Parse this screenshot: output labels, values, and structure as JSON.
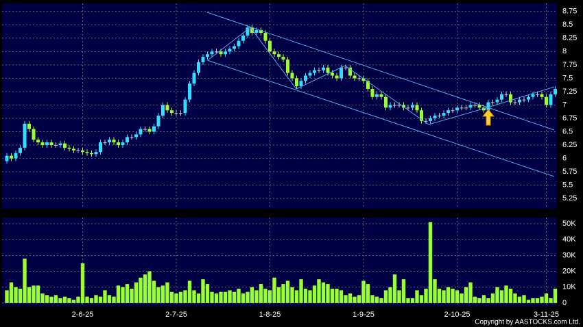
{
  "chart_data": [
    {
      "type": "candlestick",
      "x": [
        null,
        null,
        null,
        null,
        null,
        null,
        null,
        null,
        null,
        null,
        null,
        null,
        null,
        null,
        null,
        null,
        null,
        "2-6-25",
        null,
        null,
        null,
        null,
        null,
        null,
        null,
        null,
        null,
        null,
        null,
        null,
        null,
        null,
        null,
        null,
        null,
        null,
        null,
        null,
        "2-7-25",
        null,
        null,
        null,
        null,
        null,
        null,
        null,
        null,
        null,
        null,
        null,
        null,
        null,
        null,
        null,
        null,
        null,
        null,
        null,
        null,
        "1-8-25",
        null,
        null,
        null,
        null,
        null,
        null,
        null,
        null,
        null,
        null,
        null,
        null,
        null,
        null,
        null,
        null,
        null,
        null,
        null,
        null,
        "1-9-25",
        null,
        null,
        null,
        null,
        null,
        null,
        null,
        null,
        null,
        null,
        null,
        null,
        null,
        null,
        null,
        null,
        null,
        null,
        null,
        null,
        "2-10-25",
        null,
        null,
        null,
        null,
        null,
        null,
        null,
        null,
        null,
        null,
        null,
        null,
        null,
        null,
        null,
        null,
        null,
        null,
        null,
        "3-11-25",
        null,
        null
      ],
      "open": [
        5.95,
        6.05,
        6.0,
        6.1,
        6.2,
        6.65,
        6.55,
        6.35,
        6.3,
        6.25,
        6.3,
        6.25,
        6.25,
        6.28,
        6.2,
        6.18,
        6.15,
        6.15,
        6.12,
        6.1,
        6.08,
        6.12,
        6.3,
        6.3,
        6.35,
        6.3,
        6.25,
        6.3,
        6.4,
        6.4,
        6.45,
        6.55,
        6.55,
        6.5,
        6.6,
        6.8,
        7.0,
        6.9,
        6.85,
        6.85,
        6.85,
        7.1,
        7.4,
        7.6,
        7.8,
        7.9,
        7.95,
        8.0,
        8.0,
        7.95,
        8.0,
        8.05,
        8.1,
        8.2,
        8.3,
        8.45,
        8.35,
        8.4,
        8.35,
        8.2,
        8.0,
        7.95,
        7.9,
        7.85,
        7.6,
        7.5,
        7.35,
        7.45,
        7.55,
        7.6,
        7.65,
        7.65,
        7.7,
        7.6,
        7.55,
        7.5,
        7.7,
        7.7,
        7.55,
        7.5,
        7.5,
        7.45,
        7.3,
        7.15,
        7.2,
        7.15,
        6.95,
        7.0,
        7.0,
        7.0,
        6.95,
        6.95,
        7.0,
        6.9,
        6.7,
        6.7,
        6.75,
        6.8,
        6.8,
        6.85,
        6.9,
        6.9,
        6.95,
        6.95,
        6.95,
        7.0,
        7.0,
        6.95,
        6.9,
        7.05,
        7.05,
        7.1,
        7.2,
        7.2,
        7.05,
        7.05,
        7.1,
        7.1,
        7.15,
        7.2,
        7.2,
        7.15,
        7.0,
        7.2
      ],
      "high": [
        6.1,
        6.1,
        6.15,
        6.25,
        6.7,
        6.7,
        6.6,
        6.4,
        6.35,
        6.35,
        6.35,
        6.3,
        6.33,
        6.33,
        6.25,
        6.23,
        6.2,
        6.2,
        6.17,
        6.15,
        6.17,
        6.35,
        6.35,
        6.4,
        6.4,
        6.35,
        6.35,
        6.45,
        6.45,
        6.5,
        6.6,
        6.6,
        6.6,
        6.65,
        6.85,
        7.05,
        7.05,
        6.95,
        6.9,
        6.9,
        7.15,
        7.45,
        7.65,
        7.85,
        7.95,
        8.0,
        8.05,
        8.05,
        8.05,
        8.05,
        8.1,
        8.15,
        8.25,
        8.35,
        8.5,
        8.5,
        8.45,
        8.45,
        8.4,
        8.25,
        8.05,
        8.0,
        7.95,
        7.9,
        7.65,
        7.55,
        7.5,
        7.6,
        7.65,
        7.7,
        7.7,
        7.75,
        7.75,
        7.65,
        7.6,
        7.75,
        7.75,
        7.75,
        7.6,
        7.55,
        7.55,
        7.5,
        7.35,
        7.25,
        7.25,
        7.2,
        7.05,
        7.05,
        7.05,
        7.05,
        7.0,
        7.05,
        7.05,
        6.95,
        6.75,
        6.8,
        6.85,
        6.85,
        6.9,
        6.95,
        6.95,
        7.0,
        7.0,
        7.0,
        7.05,
        7.05,
        7.05,
        7.0,
        7.1,
        7.1,
        7.15,
        7.25,
        7.25,
        7.25,
        7.1,
        7.15,
        7.15,
        7.2,
        7.25,
        7.25,
        7.25,
        7.2,
        7.25,
        7.35
      ],
      "low": [
        5.9,
        5.95,
        5.95,
        6.05,
        6.15,
        6.5,
        6.3,
        6.25,
        6.2,
        6.2,
        6.2,
        6.2,
        6.2,
        6.15,
        6.13,
        6.1,
        6.1,
        6.07,
        6.05,
        6.03,
        6.03,
        6.07,
        6.25,
        6.25,
        6.25,
        6.2,
        6.2,
        6.25,
        6.35,
        6.35,
        6.4,
        6.5,
        6.45,
        6.45,
        6.55,
        6.75,
        6.85,
        6.8,
        6.8,
        6.8,
        6.8,
        7.05,
        7.35,
        7.55,
        7.75,
        7.85,
        7.9,
        7.95,
        7.9,
        7.9,
        7.95,
        8.0,
        8.05,
        8.15,
        8.25,
        8.3,
        8.3,
        8.3,
        8.15,
        7.95,
        7.9,
        7.85,
        7.8,
        7.55,
        7.45,
        7.3,
        7.3,
        7.4,
        7.5,
        7.55,
        7.6,
        7.6,
        7.55,
        7.5,
        7.45,
        7.45,
        7.65,
        7.5,
        7.45,
        7.45,
        7.4,
        7.25,
        7.1,
        7.1,
        7.1,
        6.9,
        6.9,
        6.95,
        6.95,
        6.9,
        6.9,
        6.9,
        6.85,
        6.65,
        6.65,
        6.65,
        6.7,
        6.75,
        6.75,
        6.8,
        6.85,
        6.85,
        6.9,
        6.9,
        6.9,
        6.95,
        6.9,
        6.85,
        6.85,
        7.0,
        7.0,
        7.05,
        7.15,
        7.0,
        7.0,
        7.0,
        7.05,
        7.05,
        7.1,
        7.15,
        7.1,
        6.95,
        6.95,
        7.15
      ],
      "close": [
        6.05,
        6.0,
        6.1,
        6.2,
        6.65,
        6.55,
        6.35,
        6.3,
        6.25,
        6.3,
        6.25,
        6.25,
        6.28,
        6.2,
        6.18,
        6.15,
        6.15,
        6.12,
        6.1,
        6.08,
        6.12,
        6.3,
        6.3,
        6.35,
        6.3,
        6.25,
        6.3,
        6.4,
        6.4,
        6.45,
        6.55,
        6.55,
        6.5,
        6.6,
        6.8,
        7.0,
        6.9,
        6.85,
        6.85,
        6.85,
        7.1,
        7.4,
        7.6,
        7.8,
        7.9,
        7.95,
        8.0,
        8.0,
        7.95,
        8.0,
        8.05,
        8.1,
        8.2,
        8.3,
        8.45,
        8.35,
        8.4,
        8.35,
        8.2,
        8.0,
        7.95,
        7.9,
        7.85,
        7.6,
        7.5,
        7.35,
        7.45,
        7.55,
        7.6,
        7.65,
        7.65,
        7.7,
        7.6,
        7.55,
        7.5,
        7.7,
        7.7,
        7.55,
        7.5,
        7.5,
        7.45,
        7.3,
        7.15,
        7.2,
        7.15,
        6.95,
        7.0,
        7.0,
        7.0,
        6.95,
        6.95,
        7.0,
        6.9,
        6.7,
        6.7,
        6.75,
        6.8,
        6.8,
        6.85,
        6.9,
        6.9,
        6.95,
        6.95,
        6.95,
        7.0,
        7.0,
        6.95,
        6.9,
        7.05,
        7.05,
        7.1,
        7.2,
        7.2,
        7.05,
        7.05,
        7.1,
        7.1,
        7.15,
        7.2,
        7.2,
        7.15,
        7.0,
        7.2,
        7.3
      ],
      "up_color": "#33ddff",
      "down_color": "#99ff33",
      "ylim": [
        5.06,
        8.9
      ],
      "yticks": [
        5.25,
        5.5,
        5.75,
        6,
        6.25,
        6.5,
        6.75,
        7,
        7.25,
        7.5,
        7.75,
        8,
        8.25,
        8.5,
        8.75
      ],
      "grid": true
    },
    {
      "type": "bar",
      "color": "#99ff33",
      "values": [
        8000,
        13000,
        10000,
        9000,
        28000,
        10000,
        11000,
        11000,
        6000,
        5000,
        4000,
        5000,
        3000,
        4000,
        3000,
        2000,
        4000,
        25000,
        4000,
        3000,
        5000,
        4000,
        8000,
        5000,
        4000,
        11000,
        10000,
        12000,
        9000,
        13000,
        16000,
        18000,
        20000,
        14000,
        10000,
        11000,
        13000,
        7000,
        6000,
        7000,
        8000,
        14000,
        8000,
        6000,
        15000,
        12000,
        7000,
        6000,
        7000,
        7000,
        8000,
        7000,
        9000,
        6000,
        7000,
        10000,
        8000,
        12000,
        9000,
        8000,
        16000,
        10000,
        12000,
        14000,
        10000,
        8000,
        15000,
        9000,
        8000,
        11000,
        15000,
        13000,
        12000,
        9000,
        9000,
        8000,
        5000,
        6000,
        4000,
        5000,
        14000,
        12000,
        5000,
        4000,
        3000,
        8000,
        10000,
        18000,
        8000,
        15000,
        3000,
        3000,
        8000,
        5000,
        9000,
        51000,
        15000,
        9000,
        8000,
        10000,
        9000,
        8000,
        6000,
        10000,
        13000,
        4000,
        3000,
        5000,
        3000,
        6000,
        10000,
        8000,
        11000,
        9000,
        6000,
        4000,
        5000,
        2000,
        3000,
        3000,
        4000,
        6000,
        3000,
        9000
      ],
      "ylim": [
        -2200,
        53900
      ],
      "yticks": [
        0,
        {
          "value": 10000,
          "label": "10K"
        },
        {
          "value": 20000,
          "label": "20K"
        },
        {
          "value": 30000,
          "label": "30K"
        },
        {
          "value": 40000,
          "label": "40K"
        },
        {
          "value": 50000,
          "label": "50K"
        }
      ],
      "grid": true
    }
  ],
  "copyright": "Copyright by AASTOCKS.com Ltd."
}
